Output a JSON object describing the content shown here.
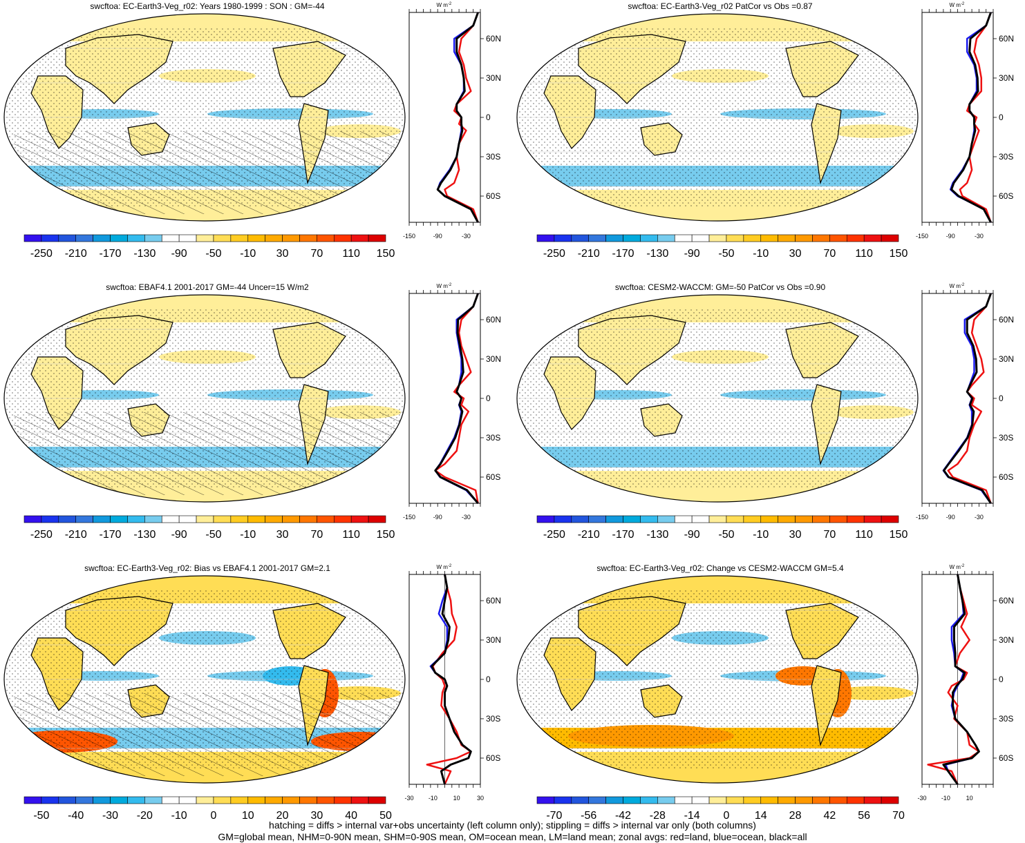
{
  "figure": {
    "footer_lines": [
      "hatching = diffs > internal var+obs uncertainty (left column only); stippling = diffs > internal var only (both columns)",
      "GM=global mean, NHM=0-90N mean, SHM=0-90S mean, OM=ocean mean, LM=land mean; zonal avgs: red=land, blue=ocean, black=all"
    ],
    "zonal_unit": "W m",
    "zonal_unit_exp": "-2",
    "lat_labels": [
      "60N",
      "30N",
      "0",
      "30S",
      "60S"
    ]
  },
  "colors": {
    "land": "#ee1111",
    "ocean": "#1a1aee",
    "all": "#000000",
    "colorbar_abs": [
      "#3311ee",
      "#1a33ee",
      "#2255dd",
      "#3377dd",
      "#1199dd",
      "#00aadd",
      "#33bbee",
      "#77ccee",
      "#ffffff",
      "#ffffff",
      "#ffee99",
      "#ffdd55",
      "#ffcc22",
      "#ffbb00",
      "#ffaa00",
      "#ff9900",
      "#ff7700",
      "#ff5500",
      "#ff3300",
      "#ee1111",
      "#dd0000"
    ],
    "colorbar_diff": [
      "#3311ee",
      "#1a33ee",
      "#2255dd",
      "#3377dd",
      "#1199dd",
      "#00aadd",
      "#33bbee",
      "#77ccee",
      "#ffffff",
      "#ffffff",
      "#ffee99",
      "#ffdd55",
      "#ffcc22",
      "#ffbb00",
      "#ffaa00",
      "#ff9900",
      "#ff7700",
      "#ff5500",
      "#ff3300",
      "#ee1111",
      "#dd0000"
    ]
  },
  "panels": [
    {
      "title": "swcftoa: EC-Earth3-Veg_r02: Years 1980-1999 : SON : GM=-44",
      "colorbar_labels": [
        "-250",
        "-210",
        "-170",
        "-130",
        "-90",
        "-50",
        "-10",
        "30",
        "70",
        "110",
        "150"
      ],
      "zonal_ticks": [
        "-150",
        "-90",
        "-30"
      ],
      "map_style": "abs",
      "hatch": true
    },
    {
      "title": "swcftoa: EC-Earth3-Veg_r02 PatCor vs Obs =0.87",
      "colorbar_labels": [
        "-250",
        "-210",
        "-170",
        "-130",
        "-90",
        "-50",
        "-10",
        "30",
        "70",
        "110",
        "150"
      ],
      "zonal_ticks": [
        "-150",
        "-90",
        "-30"
      ],
      "map_style": "abs",
      "hatch": false
    },
    {
      "title": "swcftoa: EBAF4.1 2001-2017 GM=-44 Uncer=15 W/m2",
      "colorbar_labels": [
        "-250",
        "-210",
        "-170",
        "-130",
        "-90",
        "-50",
        "-10",
        "30",
        "70",
        "110",
        "150"
      ],
      "zonal_ticks": [
        "-150",
        "-90",
        "-30"
      ],
      "map_style": "abs",
      "hatch": true
    },
    {
      "title": "swcftoa: CESM2-WACCM: GM=-50 PatCor vs Obs =0.90",
      "colorbar_labels": [
        "-250",
        "-210",
        "-170",
        "-130",
        "-90",
        "-50",
        "-10",
        "30",
        "70",
        "110",
        "150"
      ],
      "zonal_ticks": [
        "-150",
        "-90",
        "-30"
      ],
      "map_style": "abs",
      "hatch": false
    },
    {
      "title": "swcftoa: EC-Earth3-Veg_r02: Bias vs EBAF4.1 2001-2017  GM=2.1",
      "colorbar_labels": [
        "-50",
        "-40",
        "-30",
        "-20",
        "-10",
        "0",
        "10",
        "20",
        "30",
        "40",
        "50"
      ],
      "zonal_ticks": [
        "-30",
        "-10",
        "10",
        "30"
      ],
      "map_style": "bias",
      "hatch": true
    },
    {
      "title": "swcftoa: EC-Earth3-Veg_r02: Change vs CESM2-WACCM GM=5.4",
      "colorbar_labels": [
        "-70",
        "-56",
        "-42",
        "-28",
        "-14",
        "0",
        "14",
        "28",
        "42",
        "56",
        "70"
      ],
      "zonal_ticks": [
        "-30",
        "-10",
        "10"
      ],
      "map_style": "change",
      "hatch": false
    }
  ],
  "chart_data": [
    {
      "type": "line",
      "title": "swcftoa: EC-Earth3-Veg_r02: Years 1980-1999 : SON : GM=-44",
      "xlabel": "W m-2",
      "xlim": [
        -150,
        0
      ],
      "lat": [
        80,
        70,
        60,
        50,
        40,
        30,
        20,
        10,
        5,
        0,
        -5,
        -10,
        -20,
        -30,
        -40,
        -50,
        -55,
        -60,
        -70,
        -80
      ],
      "series": [
        {
          "name": "land",
          "values": [
            -5,
            -15,
            -40,
            -45,
            -35,
            -30,
            -20,
            -50,
            -55,
            -40,
            -45,
            -30,
            -45,
            -50,
            -45,
            -55,
            -75,
            -70,
            -15,
            -5
          ]
        },
        {
          "name": "ocean",
          "values": [
            -5,
            -15,
            -55,
            -55,
            -40,
            -35,
            -35,
            -50,
            -50,
            -40,
            -40,
            -40,
            -45,
            -50,
            -65,
            -85,
            -90,
            -75,
            -20,
            -5
          ]
        },
        {
          "name": "all",
          "values": [
            -5,
            -15,
            -50,
            -50,
            -40,
            -35,
            -33,
            -50,
            -50,
            -40,
            -40,
            -38,
            -45,
            -50,
            -63,
            -83,
            -90,
            -75,
            -20,
            -5
          ]
        }
      ]
    },
    {
      "type": "line",
      "title": "swcftoa: EC-Earth3-Veg_r02 PatCor vs Obs =0.87",
      "xlabel": "W m-2",
      "xlim": [
        -150,
        0
      ],
      "lat": [
        80,
        70,
        60,
        50,
        40,
        30,
        20,
        10,
        5,
        0,
        -5,
        -10,
        -20,
        -30,
        -40,
        -50,
        -55,
        -60,
        -70,
        -80
      ],
      "series": [
        {
          "name": "land",
          "values": [
            -5,
            -15,
            -35,
            -40,
            -30,
            -25,
            -25,
            -50,
            -55,
            -35,
            -40,
            -30,
            -40,
            -50,
            -45,
            -55,
            -70,
            -65,
            -15,
            -5
          ]
        },
        {
          "name": "ocean",
          "values": [
            -5,
            -15,
            -55,
            -55,
            -40,
            -35,
            -35,
            -50,
            -50,
            -40,
            -40,
            -40,
            -45,
            -50,
            -65,
            -85,
            -90,
            -75,
            -20,
            -5
          ]
        },
        {
          "name": "all",
          "values": [
            -5,
            -15,
            -48,
            -50,
            -38,
            -33,
            -32,
            -50,
            -50,
            -40,
            -40,
            -38,
            -45,
            -50,
            -63,
            -83,
            -88,
            -73,
            -20,
            -5
          ]
        }
      ]
    },
    {
      "type": "line",
      "title": "swcftoa: EBAF4.1 2001-2017 GM=-44 Uncer=15 W/m2",
      "xlabel": "W m-2",
      "xlim": [
        -150,
        0
      ],
      "lat": [
        80,
        70,
        60,
        50,
        40,
        30,
        20,
        10,
        5,
        0,
        -5,
        -10,
        -20,
        -30,
        -40,
        -50,
        -55,
        -60,
        -70,
        -80
      ],
      "series": [
        {
          "name": "land",
          "values": [
            -5,
            -15,
            -40,
            -45,
            -40,
            -30,
            -20,
            -45,
            -55,
            -35,
            -40,
            -25,
            -40,
            -45,
            -50,
            -75,
            -95,
            -75,
            -10,
            -5
          ]
        },
        {
          "name": "ocean",
          "values": [
            -5,
            -15,
            -50,
            -50,
            -45,
            -40,
            -40,
            -45,
            -50,
            -40,
            -45,
            -40,
            -45,
            -55,
            -70,
            -85,
            -95,
            -85,
            -30,
            -5
          ]
        },
        {
          "name": "all",
          "values": [
            -5,
            -15,
            -47,
            -48,
            -43,
            -38,
            -36,
            -45,
            -50,
            -40,
            -44,
            -38,
            -44,
            -53,
            -68,
            -84,
            -95,
            -84,
            -28,
            -5
          ]
        }
      ]
    },
    {
      "type": "line",
      "title": "swcftoa: CESM2-WACCM: GM=-50 PatCor vs Obs =0.90",
      "xlabel": "W m-2",
      "xlim": [
        -150,
        0
      ],
      "lat": [
        80,
        70,
        60,
        50,
        40,
        30,
        20,
        10,
        5,
        0,
        -5,
        -10,
        -20,
        -30,
        -40,
        -50,
        -55,
        -60,
        -70,
        -80
      ],
      "series": [
        {
          "name": "land",
          "values": [
            -5,
            -15,
            -40,
            -45,
            -35,
            -25,
            -20,
            -45,
            -55,
            -40,
            -45,
            -25,
            -40,
            -50,
            -55,
            -75,
            -95,
            -85,
            -15,
            -5
          ]
        },
        {
          "name": "ocean",
          "values": [
            -5,
            -15,
            -60,
            -60,
            -45,
            -40,
            -40,
            -50,
            -55,
            -45,
            -50,
            -45,
            -45,
            -55,
            -75,
            -95,
            -105,
            -95,
            -25,
            -5
          ]
        },
        {
          "name": "all",
          "values": [
            -5,
            -15,
            -55,
            -55,
            -42,
            -36,
            -35,
            -49,
            -55,
            -44,
            -49,
            -41,
            -44,
            -54,
            -73,
            -94,
            -104,
            -94,
            -23,
            -5
          ]
        }
      ]
    },
    {
      "type": "line",
      "title": "swcftoa: EC-Earth3-Veg_r02: Bias vs EBAF4.1 2001-2017  GM=2.1",
      "xlabel": "W m-2",
      "xlim": [
        -30,
        30
      ],
      "lat": [
        80,
        70,
        60,
        50,
        40,
        30,
        20,
        10,
        5,
        0,
        -5,
        -10,
        -20,
        -30,
        -40,
        -50,
        -55,
        -60,
        -65,
        -70,
        -80
      ],
      "series": [
        {
          "name": "land",
          "values": [
            0,
            2,
            5,
            6,
            10,
            8,
            -2,
            -10,
            -8,
            -2,
            0,
            -2,
            -3,
            4,
            10,
            14,
            22,
            10,
            -15,
            5,
            0
          ]
        },
        {
          "name": "ocean",
          "values": [
            0,
            2,
            -2,
            -5,
            2,
            2,
            0,
            -12,
            -8,
            0,
            2,
            0,
            0,
            4,
            8,
            15,
            22,
            20,
            5,
            -3,
            0
          ]
        },
        {
          "name": "all",
          "values": [
            0,
            2,
            0,
            -2,
            4,
            3,
            0,
            -11,
            -8,
            0,
            2,
            0,
            0,
            4,
            8,
            15,
            22,
            20,
            5,
            -3,
            0
          ]
        }
      ]
    },
    {
      "type": "line",
      "title": "swcftoa: EC-Earth3-Veg_r02: Change vs CESM2-WACCM GM=5.4",
      "xlabel": "W m-2",
      "xlim": [
        -30,
        30
      ],
      "lat": [
        80,
        70,
        60,
        50,
        40,
        30,
        20,
        10,
        5,
        0,
        -5,
        -10,
        -20,
        -30,
        -40,
        -50,
        -55,
        -60,
        -65,
        -70,
        -80
      ],
      "series": [
        {
          "name": "land",
          "values": [
            0,
            2,
            5,
            8,
            3,
            10,
            2,
            -2,
            8,
            5,
            -5,
            -8,
            0,
            -3,
            8,
            10,
            18,
            10,
            -25,
            -5,
            0
          ]
        },
        {
          "name": "ocean",
          "values": [
            0,
            2,
            4,
            5,
            -5,
            -5,
            -3,
            -2,
            5,
            3,
            0,
            -3,
            -5,
            -2,
            8,
            15,
            18,
            12,
            -10,
            -8,
            0
          ]
        },
        {
          "name": "all",
          "values": [
            0,
            2,
            4,
            6,
            -3,
            -3,
            -2,
            -2,
            6,
            4,
            -1,
            -4,
            -4,
            -2,
            8,
            15,
            18,
            12,
            -12,
            -8,
            0
          ]
        }
      ]
    }
  ]
}
